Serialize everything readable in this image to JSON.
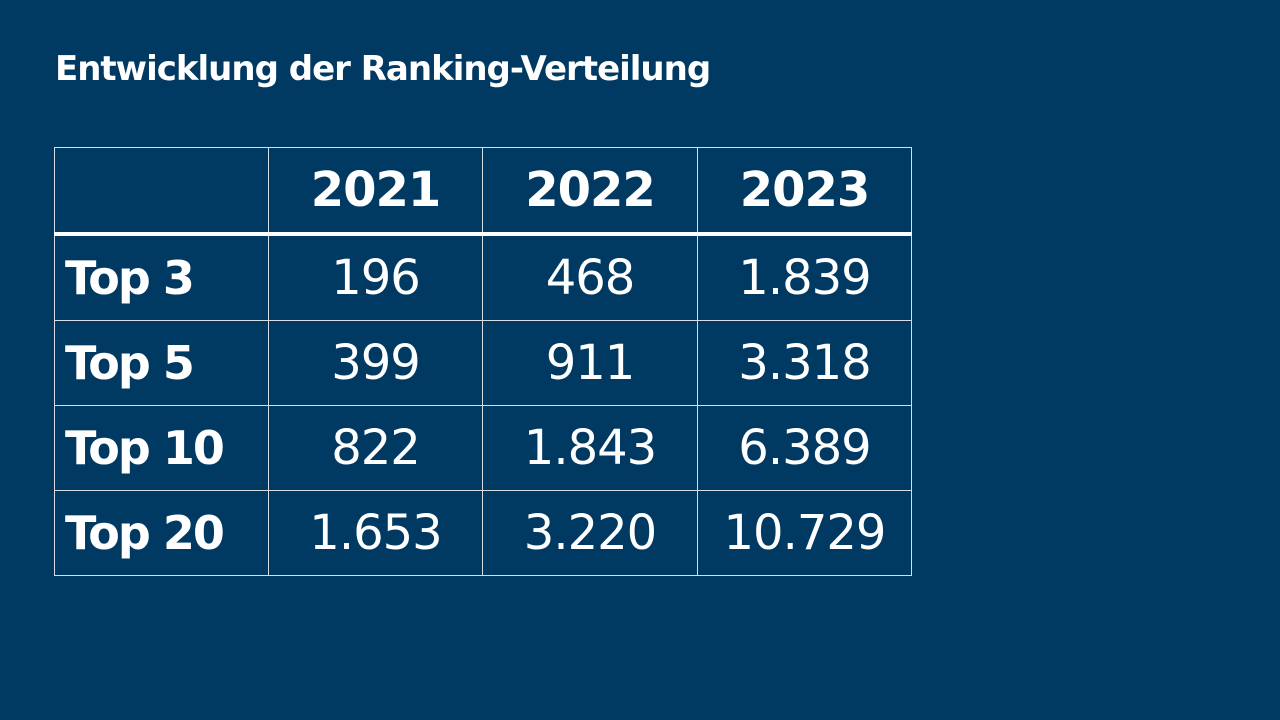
{
  "title": "Entwicklung der Ranking-Verteilung",
  "table": {
    "corner": "",
    "columns": [
      "2021",
      "2022",
      "2023"
    ],
    "rows": [
      {
        "label": "Top 3",
        "values": [
          "196",
          "468",
          "1.839"
        ]
      },
      {
        "label": "Top 5",
        "values": [
          "399",
          "911",
          "3.318"
        ]
      },
      {
        "label": "Top 10",
        "values": [
          "822",
          "1.843",
          "6.389"
        ]
      },
      {
        "label": "Top 20",
        "values": [
          "1.653",
          "3.220",
          "10.729"
        ]
      }
    ]
  },
  "colors": {
    "background": "#003a62",
    "text": "#ffffff",
    "grid": "#d6dde4"
  }
}
